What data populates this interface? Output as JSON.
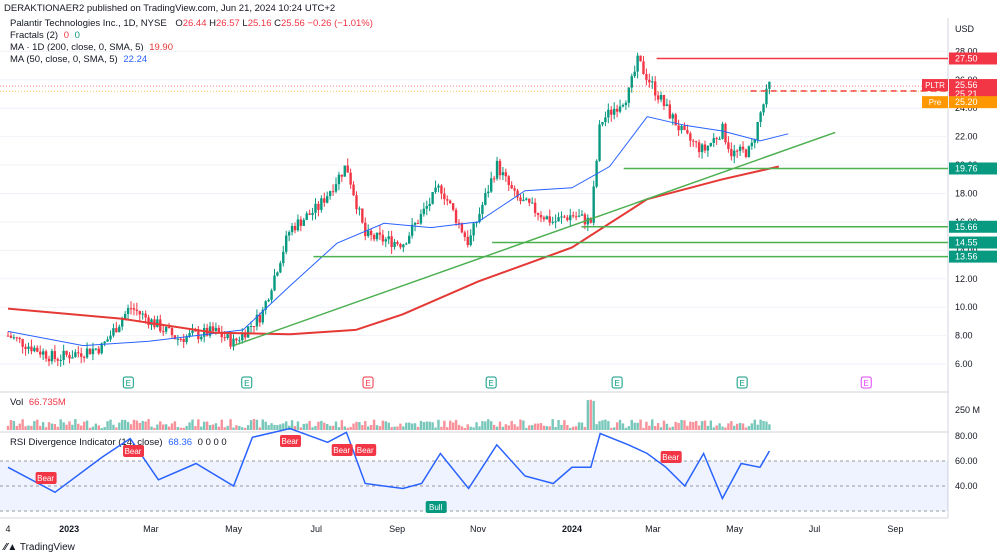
{
  "header": {
    "publisher_line": "DERAKTIONAER2 published on TradingView.com, Jun 21, 2024 10:24 UTC+2"
  },
  "legend": {
    "title": "Palantir Technologies Inc., 1D, NYSE",
    "ohlc": {
      "O": "26.44",
      "H": "26.57",
      "L": "25.16",
      "C": "25.56",
      "change": "−0.26 (−1.01%)"
    },
    "fractals": {
      "label": "Fractals (2)",
      "v1": "0",
      "v2": "0"
    },
    "ma200": {
      "label": "MA · 1D (200, close, 0, SMA, 5)",
      "value": "19.90"
    },
    "ma50": {
      "label": "MA (50, close, 0, SMA, 5)",
      "value": "22.24"
    },
    "vol": {
      "label": "Vol",
      "value": "66.735M"
    },
    "rsi": {
      "label": "RSI Divergence Indicator (14, close)",
      "value": "68.36",
      "zeros": "0 0 0 0"
    }
  },
  "price_axis": {
    "currency": "USD",
    "ticks": [
      "28.00",
      "26.00",
      "24.00",
      "22.00",
      "20.00",
      "18.00",
      "16.00",
      "14.00",
      "12.00",
      "10.00",
      "8.00",
      "6.00"
    ]
  },
  "price_badges": [
    {
      "label": "27.50",
      "color": "#f23645"
    },
    {
      "ticker": "PLTR",
      "label": "25.56",
      "color": "#f23645"
    },
    {
      "label": "25.21",
      "color": "#f23645"
    },
    {
      "ticker": "Pre",
      "label": "25.20",
      "color": "#ff9800"
    },
    {
      "label": "19.76",
      "color": "#089981"
    },
    {
      "label": "15.66",
      "color": "#089981"
    },
    {
      "label": "14.55",
      "color": "#089981"
    },
    {
      "label": "13.56",
      "color": "#089981"
    }
  ],
  "volume_axis": {
    "ticks": [
      "250 M"
    ]
  },
  "rsi_axis": {
    "ticks": [
      "80.00",
      "60.00",
      "40.00"
    ]
  },
  "time_axis": {
    "ticks": [
      "4",
      "2023",
      "Mar",
      "May",
      "Jul",
      "Sep",
      "Nov",
      "2024",
      "Mar",
      "May",
      "Jul",
      "Sep"
    ]
  },
  "earnings_markers": {
    "label": "E",
    "colors": [
      "#089981",
      "#089981",
      "#f23645",
      "#089981",
      "#089981",
      "#089981",
      "#e040fb"
    ]
  },
  "divergence_labels": [
    {
      "text": "Bear",
      "color": "#f23645"
    },
    {
      "text": "Bear",
      "color": "#f23645"
    },
    {
      "text": "Bear",
      "color": "#f23645"
    },
    {
      "text": "Bear",
      "color": "#f23645"
    },
    {
      "text": "Bear",
      "color": "#f23645"
    },
    {
      "text": "Bear",
      "color": "#f23645"
    },
    {
      "text": "Bull",
      "color": "#089981"
    }
  ],
  "footer": {
    "brand": "TradingView"
  },
  "colors": {
    "up": "#089981",
    "down": "#f23645",
    "ma50": "#2962ff",
    "ma200": "#e53935",
    "trend": "#4caf50",
    "rsi": "#2962ff"
  },
  "chart_data": {
    "type": "candlestick",
    "symbol": "PLTR",
    "interval": "1D",
    "price_range": [
      5.3,
      28.8
    ],
    "ma200_path": [
      [
        0,
        9.9
      ],
      [
        0.12,
        9.2
      ],
      [
        0.22,
        8.2
      ],
      [
        0.3,
        8.1
      ],
      [
        0.37,
        8.4
      ],
      [
        0.42,
        9.5
      ],
      [
        0.5,
        11.8
      ],
      [
        0.6,
        14.2
      ],
      [
        0.68,
        17.6
      ],
      [
        0.76,
        19.0
      ],
      [
        0.82,
        19.9
      ]
    ],
    "ma50_path": [
      [
        0,
        8.3
      ],
      [
        0.08,
        7.3
      ],
      [
        0.15,
        7.6
      ],
      [
        0.2,
        8.0
      ],
      [
        0.25,
        8.4
      ],
      [
        0.3,
        11.5
      ],
      [
        0.35,
        14.5
      ],
      [
        0.4,
        15.9
      ],
      [
        0.45,
        15.6
      ],
      [
        0.5,
        16.0
      ],
      [
        0.55,
        18.2
      ],
      [
        0.6,
        18.4
      ],
      [
        0.64,
        19.9
      ],
      [
        0.68,
        23.4
      ],
      [
        0.72,
        22.8
      ],
      [
        0.76,
        22.4
      ],
      [
        0.8,
        21.7
      ],
      [
        0.83,
        22.2
      ]
    ],
    "trendline": [
      [
        0.24,
        7.3
      ],
      [
        0.88,
        22.3
      ]
    ],
    "horizontal_levels": [
      27.5,
      25.21,
      19.76,
      15.66,
      14.55,
      13.56
    ],
    "close_path": [
      [
        0,
        8.0
      ],
      [
        0.05,
        6.4
      ],
      [
        0.1,
        7.2
      ],
      [
        0.13,
        10.0
      ],
      [
        0.18,
        7.8
      ],
      [
        0.22,
        8.3
      ],
      [
        0.24,
        7.5
      ],
      [
        0.27,
        9.5
      ],
      [
        0.3,
        15.5
      ],
      [
        0.33,
        17.0
      ],
      [
        0.36,
        20.0
      ],
      [
        0.38,
        15.0
      ],
      [
        0.42,
        14.5
      ],
      [
        0.46,
        18.5
      ],
      [
        0.49,
        14.5
      ],
      [
        0.52,
        20.0
      ],
      [
        0.54,
        17.7
      ],
      [
        0.58,
        16.0
      ],
      [
        0.6,
        16.5
      ],
      [
        0.62,
        16.0
      ],
      [
        0.63,
        23.0
      ],
      [
        0.66,
        25.0
      ],
      [
        0.67,
        27.3
      ],
      [
        0.7,
        24.0
      ],
      [
        0.72,
        22.0
      ],
      [
        0.74,
        21.0
      ],
      [
        0.76,
        22.5
      ],
      [
        0.77,
        20.8
      ],
      [
        0.79,
        21.0
      ],
      [
        0.8,
        23.5
      ],
      [
        0.81,
        25.6
      ]
    ],
    "rsi_path": [
      [
        0,
        55
      ],
      [
        0.05,
        35
      ],
      [
        0.1,
        63
      ],
      [
        0.13,
        78
      ],
      [
        0.16,
        45
      ],
      [
        0.2,
        58
      ],
      [
        0.24,
        40
      ],
      [
        0.26,
        79
      ],
      [
        0.3,
        86
      ],
      [
        0.34,
        75
      ],
      [
        0.36,
        83
      ],
      [
        0.38,
        42
      ],
      [
        0.42,
        38
      ],
      [
        0.44,
        42
      ],
      [
        0.46,
        66
      ],
      [
        0.49,
        38
      ],
      [
        0.52,
        73
      ],
      [
        0.55,
        48
      ],
      [
        0.58,
        42
      ],
      [
        0.6,
        55
      ],
      [
        0.62,
        55
      ],
      [
        0.63,
        82
      ],
      [
        0.66,
        73
      ],
      [
        0.68,
        66
      ],
      [
        0.7,
        55
      ],
      [
        0.72,
        40
      ],
      [
        0.74,
        66
      ],
      [
        0.76,
        30
      ],
      [
        0.78,
        58
      ],
      [
        0.8,
        55
      ],
      [
        0.81,
        68
      ]
    ]
  }
}
